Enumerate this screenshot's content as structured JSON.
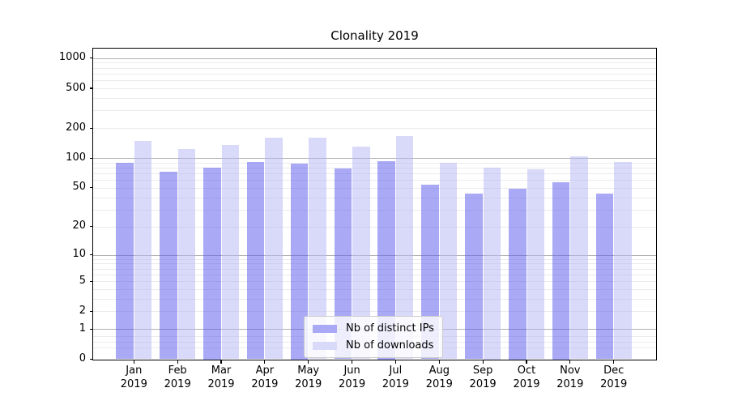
{
  "chart_data": {
    "type": "bar",
    "title": "Clonality 2019",
    "categories": [
      "Jan",
      "Feb",
      "Mar",
      "Apr",
      "May",
      "Jun",
      "Jul",
      "Aug",
      "Sep",
      "Oct",
      "Nov",
      "Dec"
    ],
    "x_year_label": "2019",
    "series": [
      {
        "name": "Nb of distinct IPs",
        "color": "#a9a9f5",
        "values": [
          90,
          73,
          80,
          91,
          88,
          78,
          93,
          54,
          44,
          49,
          57,
          44
        ]
      },
      {
        "name": "Nb of downloads",
        "color": "#d9d9fa",
        "values": [
          148,
          123,
          136,
          160,
          160,
          130,
          166,
          90,
          80,
          77,
          104,
          92
        ]
      }
    ],
    "yscale": "log(1+x)",
    "ytick_labels": [
      0,
      1,
      2,
      5,
      10,
      20,
      50,
      100,
      200,
      500,
      1000
    ],
    "ylim": [
      0,
      1250
    ],
    "grid": "both",
    "legend_position": "lower center",
    "grid_major_color": "#b0b0b0",
    "grid_minor_color": "#ebebeb",
    "axis_color": "#000000"
  }
}
